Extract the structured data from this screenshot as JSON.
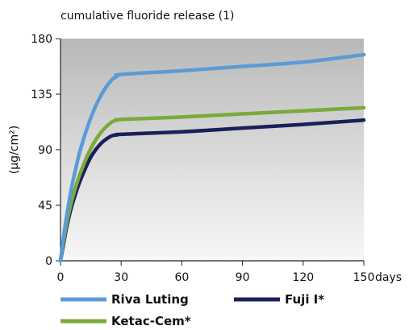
{
  "chart_data": {
    "type": "line",
    "title": "cumulative fluoride release (1)",
    "ylabel": "(µg/cm²)",
    "xunit": "days",
    "xlim": [
      0,
      150
    ],
    "ylim": [
      0,
      180
    ],
    "xticks": [
      0,
      30,
      60,
      90,
      120,
      150
    ],
    "yticks": [
      0,
      45,
      90,
      135,
      180
    ],
    "legend_position": "bottom",
    "background": "gradient-gray",
    "series": [
      {
        "name": "Riva Luting",
        "color": "#5b9bd5",
        "x": [
          0,
          1,
          2,
          3,
          5,
          7,
          10,
          15,
          20,
          25,
          28,
          30,
          60,
          90,
          120,
          150
        ],
        "y": [
          0,
          13,
          25,
          36,
          55,
          71,
          91,
          116,
          134,
          146,
          149.5,
          151,
          154,
          157.5,
          161,
          167
        ]
      },
      {
        "name": "Ketac-Cem*",
        "color": "#7aaa3a",
        "x": [
          0,
          1,
          2,
          3,
          5,
          7,
          10,
          15,
          20,
          25,
          28,
          30,
          60,
          90,
          120,
          150
        ],
        "y": [
          0,
          11,
          21,
          30,
          45,
          57,
          72,
          91,
          104,
          112,
          114,
          114.5,
          116.5,
          119,
          121.5,
          124
        ]
      },
      {
        "name": "Fuji I*",
        "color": "#1a1f5c",
        "x": [
          0,
          1,
          2,
          3,
          5,
          7,
          10,
          15,
          20,
          25,
          28,
          30,
          60,
          90,
          120,
          150
        ],
        "y": [
          0,
          9,
          18,
          27,
          41,
          52,
          66,
          84,
          95,
          101,
          102,
          102.5,
          104.5,
          107.5,
          110.5,
          114
        ]
      }
    ]
  }
}
